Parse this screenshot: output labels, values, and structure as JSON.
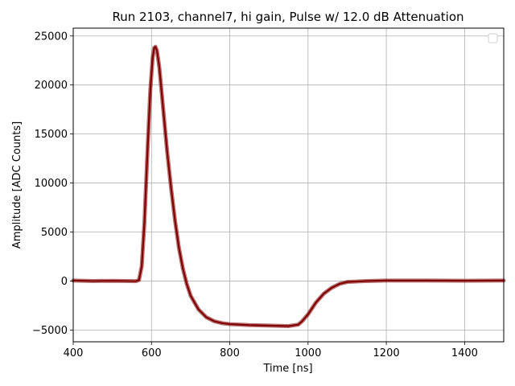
{
  "chart_data": {
    "type": "line",
    "title": "Run 2103, channel7, hi gain, Pulse w/ 12.0 dB Attenuation",
    "xlabel": "Time [ns]",
    "ylabel": "Amplitude [ADC Counts]",
    "xlim": [
      400,
      1500
    ],
    "ylim": [
      -6200,
      25800
    ],
    "x_ticks": [
      400,
      600,
      800,
      1000,
      1200,
      1400
    ],
    "y_ticks": [
      -5000,
      0,
      5000,
      10000,
      15000,
      20000,
      25000
    ],
    "y_tick_labels": [
      "−5000",
      "0",
      "5000",
      "10000",
      "15000",
      "20000",
      "25000"
    ],
    "grid": true,
    "legend": "upper right (empty)",
    "series": [
      {
        "color": "#800000",
        "points": [
          [
            400,
            50
          ],
          [
            450,
            0
          ],
          [
            500,
            20
          ],
          [
            540,
            0
          ],
          [
            560,
            -20
          ],
          [
            568,
            100
          ],
          [
            575,
            1500
          ],
          [
            582,
            6000
          ],
          [
            590,
            13500
          ],
          [
            597,
            19500
          ],
          [
            603,
            22800
          ],
          [
            607,
            23800
          ],
          [
            610,
            23900
          ],
          [
            614,
            23500
          ],
          [
            620,
            21800
          ],
          [
            630,
            17500
          ],
          [
            640,
            13200
          ],
          [
            650,
            9500
          ],
          [
            660,
            6200
          ],
          [
            670,
            3400
          ],
          [
            680,
            1300
          ],
          [
            690,
            -300
          ],
          [
            700,
            -1500
          ],
          [
            720,
            -2900
          ],
          [
            740,
            -3700
          ],
          [
            760,
            -4100
          ],
          [
            780,
            -4300
          ],
          [
            800,
            -4400
          ],
          [
            850,
            -4500
          ],
          [
            900,
            -4550
          ],
          [
            950,
            -4600
          ],
          [
            975,
            -4450
          ],
          [
            985,
            -4100
          ],
          [
            1000,
            -3400
          ],
          [
            1020,
            -2200
          ],
          [
            1040,
            -1300
          ],
          [
            1060,
            -700
          ],
          [
            1080,
            -300
          ],
          [
            1100,
            -100
          ],
          [
            1150,
            0
          ],
          [
            1200,
            50
          ],
          [
            1300,
            50
          ],
          [
            1400,
            30
          ],
          [
            1500,
            50
          ]
        ]
      }
    ]
  }
}
